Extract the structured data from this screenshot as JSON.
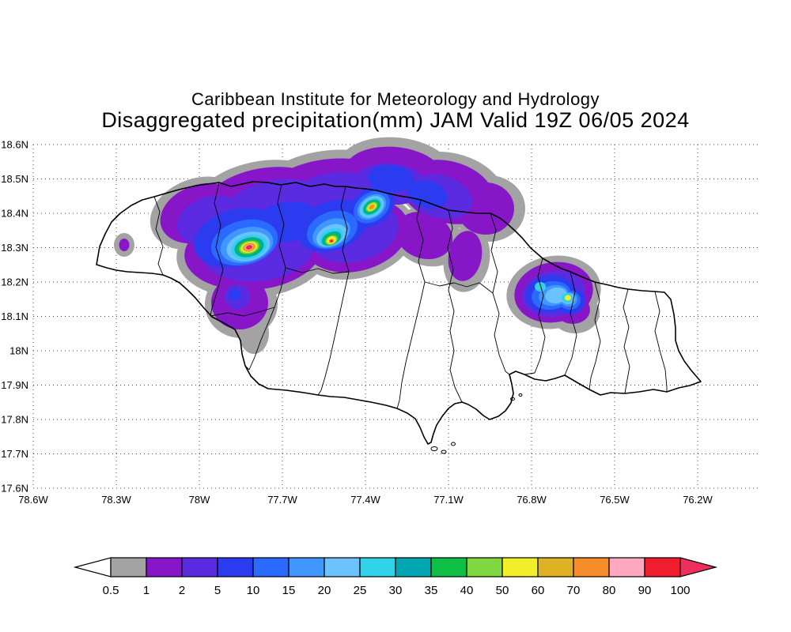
{
  "header": {
    "line1": "Caribbean Institute for Meteorology and Hydrology",
    "line2": "Disaggregated precipitation(mm) JAM Valid 19Z 06/05 2024"
  },
  "axes": {
    "lat_ticks": [
      "18.6N",
      "18.5N",
      "18.4N",
      "18.3N",
      "18.2N",
      "18.1N",
      "18N",
      "17.9N",
      "17.8N",
      "17.7N",
      "17.6N"
    ],
    "lon_ticks": [
      "78.6W",
      "78.3W",
      "78W",
      "77.7W",
      "77.4W",
      "77.1W",
      "76.8W",
      "76.5W",
      "76.2W"
    ]
  },
  "legend": {
    "labels": [
      "0.5",
      "1",
      "2",
      "5",
      "10",
      "15",
      "20",
      "25",
      "30",
      "35",
      "40",
      "50",
      "60",
      "70",
      "80",
      "90",
      "100"
    ],
    "colors": [
      "#ffffff",
      "#a3a3a3",
      "#8616c8",
      "#5a2be0",
      "#2b3cf0",
      "#2a6aff",
      "#3f97ff",
      "#6cc1ff",
      "#31d2e8",
      "#00a7b3",
      "#0fbf45",
      "#7fd83f",
      "#f2ef2a",
      "#dfb226",
      "#f78c2a",
      "#ffa8c0",
      "#f01e2c",
      "#ef2d5e"
    ]
  },
  "chart_data": {
    "type": "heatmap",
    "title": "Disaggregated precipitation(mm) JAM Valid 19Z 06/05 2024",
    "units": "mm",
    "region": "Jamaica (JAM)",
    "valid_time": "19Z 06/05 2024",
    "lon_range": [
      "78.6W",
      "76.2W"
    ],
    "lat_range": [
      "17.6N",
      "18.6N"
    ],
    "thresholds_mm": [
      0.5,
      1,
      2,
      5,
      10,
      15,
      20,
      25,
      30,
      35,
      40,
      50,
      60,
      70,
      80,
      90,
      100
    ],
    "cells": [
      {
        "approx_lon": "77.85W",
        "approx_lat": "18.30N",
        "peak_mm": "90-100+"
      },
      {
        "approx_lon": "77.50W",
        "approx_lat": "18.30N",
        "peak_mm": "80-90"
      },
      {
        "approx_lon": "77.38W",
        "approx_lat": "18.42N",
        "peak_mm": "70-80"
      },
      {
        "approx_lon": "76.70W",
        "approx_lat": "18.16N",
        "peak_mm": "50-60"
      }
    ]
  }
}
